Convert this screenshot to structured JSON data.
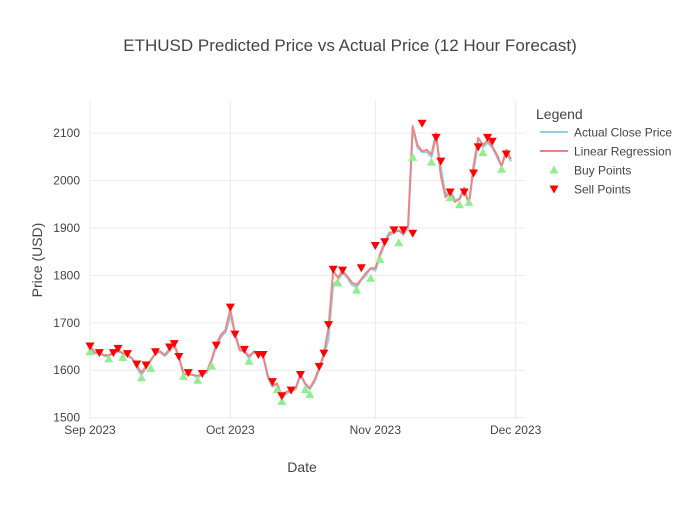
{
  "chart_data": {
    "type": "line",
    "title": "ETHUSD Predicted Price vs Actual Price (12 Hour Forecast)",
    "xlabel": "Date",
    "ylabel": "Price (USD)",
    "x_range": [
      "2023-09-01",
      "2023-12-03"
    ],
    "ylim": [
      1495,
      2170
    ],
    "x_ticks": [
      {
        "date": "2023-09-01",
        "label": "Sep 2023"
      },
      {
        "date": "2023-10-01",
        "label": "Oct 2023"
      },
      {
        "date": "2023-11-01",
        "label": "Nov 2023"
      },
      {
        "date": "2023-12-01",
        "label": "Dec 2023"
      }
    ],
    "y_ticks": [
      1500,
      1600,
      1700,
      1800,
      1900,
      2000,
      2100
    ],
    "grid": true,
    "legend": {
      "title": "Legend",
      "placement": "right",
      "entries": [
        "Actual Close Price",
        "Linear Regression",
        "Buy Points",
        "Sell Points"
      ]
    },
    "colors": {
      "actual": "#8fd3e0",
      "regression": "#f08080",
      "buy": "#90ee90",
      "sell": "#ff0000"
    },
    "series": [
      {
        "name": "Actual Close Price",
        "x": [
          "2023-09-01",
          "2023-09-02",
          "2023-09-03",
          "2023-09-04",
          "2023-09-05",
          "2023-09-06",
          "2023-09-07",
          "2023-09-08",
          "2023-09-09",
          "2023-09-10",
          "2023-09-11",
          "2023-09-12",
          "2023-09-13",
          "2023-09-14",
          "2023-09-15",
          "2023-09-16",
          "2023-09-17",
          "2023-09-18",
          "2023-09-19",
          "2023-09-20",
          "2023-09-21",
          "2023-09-22",
          "2023-09-23",
          "2023-09-24",
          "2023-09-25",
          "2023-09-26",
          "2023-09-27",
          "2023-09-28",
          "2023-09-29",
          "2023-09-30",
          "2023-10-01",
          "2023-10-02",
          "2023-10-03",
          "2023-10-04",
          "2023-10-05",
          "2023-10-06",
          "2023-10-07",
          "2023-10-08",
          "2023-10-09",
          "2023-10-10",
          "2023-10-11",
          "2023-10-12",
          "2023-10-13",
          "2023-10-14",
          "2023-10-15",
          "2023-10-16",
          "2023-10-17",
          "2023-10-18",
          "2023-10-19",
          "2023-10-20",
          "2023-10-21",
          "2023-10-22",
          "2023-10-23",
          "2023-10-24",
          "2023-10-25",
          "2023-10-26",
          "2023-10-27",
          "2023-10-28",
          "2023-10-29",
          "2023-10-30",
          "2023-10-31",
          "2023-11-01",
          "2023-11-02",
          "2023-11-03",
          "2023-11-04",
          "2023-11-05",
          "2023-11-06",
          "2023-11-07",
          "2023-11-08",
          "2023-11-09",
          "2023-11-10",
          "2023-11-11",
          "2023-11-12",
          "2023-11-13",
          "2023-11-14",
          "2023-11-15",
          "2023-11-16",
          "2023-11-17",
          "2023-11-18",
          "2023-11-19",
          "2023-11-20",
          "2023-11-21",
          "2023-11-22",
          "2023-11-23",
          "2023-11-24",
          "2023-11-25",
          "2023-11-26",
          "2023-11-27",
          "2023-11-28",
          "2023-11-29",
          "2023-11-30"
        ],
        "values": [
          1645,
          1635,
          1638,
          1630,
          1630,
          1635,
          1640,
          1635,
          1630,
          1625,
          1605,
          1590,
          1605,
          1620,
          1635,
          1638,
          1630,
          1640,
          1650,
          1630,
          1590,
          1592,
          1590,
          1585,
          1590,
          1595,
          1620,
          1650,
          1670,
          1680,
          1715,
          1680,
          1645,
          1640,
          1625,
          1640,
          1635,
          1630,
          1585,
          1565,
          1570,
          1540,
          1550,
          1555,
          1560,
          1590,
          1570,
          1560,
          1575,
          1600,
          1630,
          1665,
          1780,
          1790,
          1805,
          1795,
          1780,
          1775,
          1790,
          1800,
          1815,
          1810,
          1840,
          1865,
          1885,
          1890,
          1895,
          1885,
          1900,
          2110,
          2070,
          2060,
          2060,
          2050,
          2090,
          2030,
          1970,
          1980,
          1960,
          1960,
          1980,
          1950,
          2020,
          2080,
          2070,
          2080,
          2070,
          2050,
          2030,
          2060,
          2040
        ]
      },
      {
        "name": "Linear Regression",
        "x": [
          "2023-09-01",
          "2023-09-02",
          "2023-09-03",
          "2023-09-04",
          "2023-09-05",
          "2023-09-06",
          "2023-09-07",
          "2023-09-08",
          "2023-09-09",
          "2023-09-10",
          "2023-09-11",
          "2023-09-12",
          "2023-09-13",
          "2023-09-14",
          "2023-09-15",
          "2023-09-16",
          "2023-09-17",
          "2023-09-18",
          "2023-09-19",
          "2023-09-20",
          "2023-09-21",
          "2023-09-22",
          "2023-09-23",
          "2023-09-24",
          "2023-09-25",
          "2023-09-26",
          "2023-09-27",
          "2023-09-28",
          "2023-09-29",
          "2023-09-30",
          "2023-10-01",
          "2023-10-02",
          "2023-10-03",
          "2023-10-04",
          "2023-10-05",
          "2023-10-06",
          "2023-10-07",
          "2023-10-08",
          "2023-10-09",
          "2023-10-10",
          "2023-10-11",
          "2023-10-12",
          "2023-10-13",
          "2023-10-14",
          "2023-10-15",
          "2023-10-16",
          "2023-10-17",
          "2023-10-18",
          "2023-10-19",
          "2023-10-20",
          "2023-10-21",
          "2023-10-22",
          "2023-10-23",
          "2023-10-24",
          "2023-10-25",
          "2023-10-26",
          "2023-10-27",
          "2023-10-28",
          "2023-10-29",
          "2023-10-30",
          "2023-10-31",
          "2023-11-01",
          "2023-11-02",
          "2023-11-03",
          "2023-11-04",
          "2023-11-05",
          "2023-11-06",
          "2023-11-07",
          "2023-11-08",
          "2023-11-09",
          "2023-11-10",
          "2023-11-11",
          "2023-11-12",
          "2023-11-13",
          "2023-11-14",
          "2023-11-15",
          "2023-11-16",
          "2023-11-17",
          "2023-11-18",
          "2023-11-19",
          "2023-11-20",
          "2023-11-21",
          "2023-11-22",
          "2023-11-23",
          "2023-11-24",
          "2023-11-25",
          "2023-11-26",
          "2023-11-27",
          "2023-11-28",
          "2023-11-29",
          "2023-11-30"
        ],
        "values": [
          1650,
          1638,
          1636,
          1632,
          1632,
          1636,
          1642,
          1636,
          1632,
          1625,
          1610,
          1595,
          1608,
          1622,
          1636,
          1640,
          1632,
          1645,
          1655,
          1628,
          1592,
          1592,
          1590,
          1588,
          1592,
          1598,
          1622,
          1655,
          1675,
          1685,
          1730,
          1675,
          1642,
          1640,
          1630,
          1638,
          1635,
          1630,
          1590,
          1568,
          1572,
          1545,
          1555,
          1557,
          1563,
          1592,
          1572,
          1562,
          1580,
          1605,
          1635,
          1690,
          1810,
          1795,
          1810,
          1798,
          1785,
          1780,
          1792,
          1805,
          1815,
          1815,
          1845,
          1870,
          1890,
          1892,
          1895,
          1888,
          1905,
          2115,
          2075,
          2062,
          2065,
          2055,
          2100,
          2010,
          1965,
          1975,
          1955,
          1962,
          1985,
          1950,
          2030,
          2090,
          2075,
          2085,
          2072,
          2055,
          2030,
          2065,
          2045
        ]
      },
      {
        "name": "Buy Points",
        "x": [
          "2023-09-01",
          "2023-09-05",
          "2023-09-08",
          "2023-09-12",
          "2023-09-14",
          "2023-09-21",
          "2023-09-24",
          "2023-09-27",
          "2023-10-05",
          "2023-10-11",
          "2023-10-12",
          "2023-10-17",
          "2023-10-18",
          "2023-10-24",
          "2023-10-28",
          "2023-10-31",
          "2023-11-02",
          "2023-11-06",
          "2023-11-09",
          "2023-11-13",
          "2023-11-17",
          "2023-11-19",
          "2023-11-21",
          "2023-11-24",
          "2023-11-28"
        ],
        "values": [
          1640,
          1625,
          1628,
          1585,
          1605,
          1588,
          1580,
          1610,
          1620,
          1560,
          1535,
          1560,
          1550,
          1785,
          1770,
          1795,
          1835,
          1870,
          2050,
          2040,
          1965,
          1950,
          1955,
          2060,
          2025
        ]
      },
      {
        "name": "Sell Points",
        "x": [
          "2023-09-01",
          "2023-09-03",
          "2023-09-06",
          "2023-09-07",
          "2023-09-09",
          "2023-09-11",
          "2023-09-13",
          "2023-09-15",
          "2023-09-18",
          "2023-09-19",
          "2023-09-20",
          "2023-09-22",
          "2023-09-25",
          "2023-09-28",
          "2023-10-01",
          "2023-10-02",
          "2023-10-04",
          "2023-10-07",
          "2023-10-08",
          "2023-10-10",
          "2023-10-12",
          "2023-10-14",
          "2023-10-16",
          "2023-10-20",
          "2023-10-21",
          "2023-10-22",
          "2023-10-23",
          "2023-10-25",
          "2023-10-29",
          "2023-11-01",
          "2023-11-03",
          "2023-11-05",
          "2023-11-07",
          "2023-11-09",
          "2023-11-11",
          "2023-11-14",
          "2023-11-15",
          "2023-11-17",
          "2023-11-20",
          "2023-11-22",
          "2023-11-23",
          "2023-11-25",
          "2023-11-26",
          "2023-11-29"
        ],
        "values": [
          1650,
          1636,
          1636,
          1645,
          1634,
          1612,
          1610,
          1638,
          1648,
          1655,
          1628,
          1594,
          1592,
          1652,
          1732,
          1675,
          1643,
          1632,
          1632,
          1575,
          1545,
          1557,
          1590,
          1607,
          1635,
          1695,
          1812,
          1810,
          1815,
          1862,
          1870,
          1895,
          1895,
          1888,
          2120,
          2090,
          2040,
          1975,
          1975,
          2015,
          2070,
          2090,
          2082,
          2055
        ]
      }
    ]
  }
}
